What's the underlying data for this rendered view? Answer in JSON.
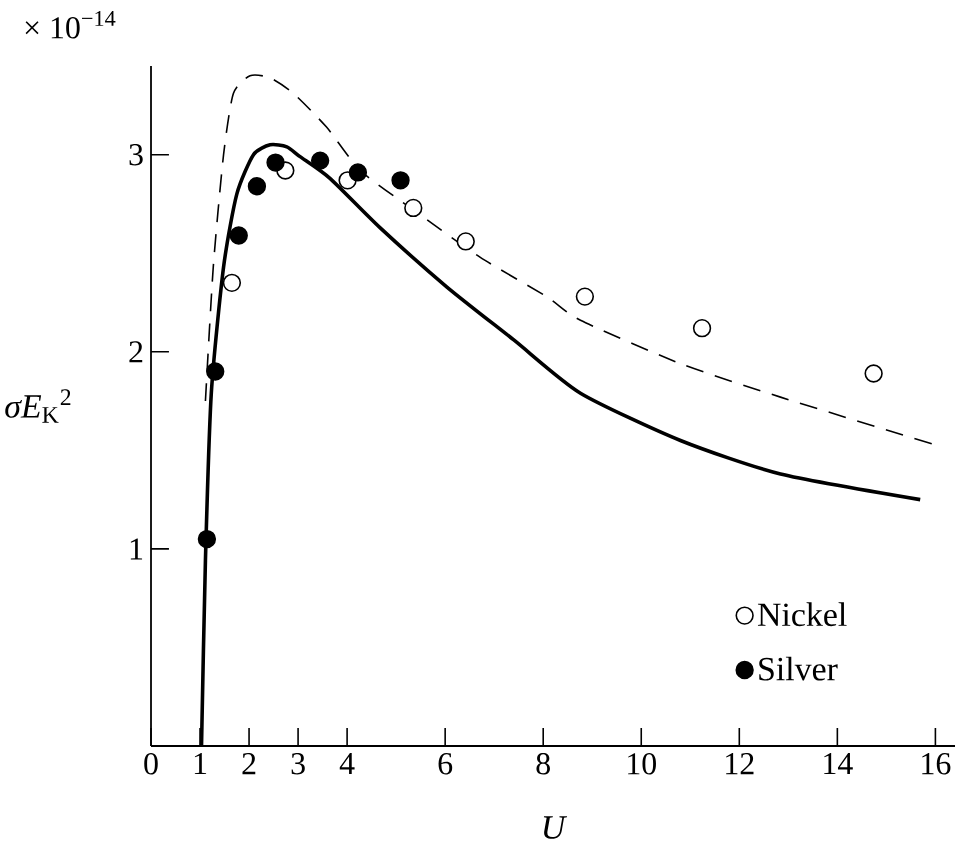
{
  "chart_data": {
    "type": "scatter",
    "xlabel": "U",
    "ylabel": "*σE*$_{K}$$^{2}$",
    "annotations": [
      "× 10$^{−14}$"
    ],
    "xlim": [
      0,
      16.4
    ],
    "ylim": [
      0,
      3.45
    ],
    "xticks": [
      0,
      1,
      2,
      3,
      4,
      6,
      8,
      10,
      12,
      14,
      16
    ],
    "yticks": [
      1,
      2,
      3
    ],
    "grid": false,
    "legend": "bottom right",
    "marker": "circle",
    "series": [
      {
        "name": "Nickel",
        "color": "#ffffff",
        "x": [
          1.65,
          2.74,
          4.01,
          5.35,
          6.42,
          8.85,
          11.24,
          14.74
        ],
        "values": [
          2.35,
          2.92,
          2.87,
          2.73,
          2.56,
          2.28,
          2.12,
          1.89
        ]
      },
      {
        "name": "Silver",
        "color": "#000000",
        "x": [
          1.14,
          1.31,
          1.79,
          2.16,
          2.54,
          3.45,
          4.22,
          5.09
        ],
        "values": [
          1.05,
          1.9,
          2.59,
          2.84,
          2.96,
          2.97,
          2.91,
          2.87
        ]
      },
      {
        "type": "line",
        "marker": "none",
        "line_style": "dashed",
        "color": "#000000",
        "x": [
          1.11,
          1.27,
          1.48,
          1.68,
          2.02,
          2.43,
          2.91,
          3.58,
          4.27,
          5.35,
          6.71,
          8.07,
          8.76,
          10.8,
          12.84,
          15.97
        ],
        "values": [
          1.75,
          2.43,
          3.0,
          3.31,
          3.4,
          3.39,
          3.31,
          3.14,
          2.92,
          2.72,
          2.48,
          2.28,
          2.16,
          1.94,
          1.77,
          1.53
        ]
      },
      {
        "type": "line",
        "marker": "none",
        "line_style": "solid",
        "color": "#000000",
        "x": [
          1.03,
          1.11,
          1.23,
          1.48,
          1.75,
          2.09,
          2.43,
          2.77,
          3.04,
          3.65,
          4.67,
          6.03,
          7.4,
          8.76,
          10.8,
          12.84,
          15.69
        ],
        "values": [
          0,
          0.94,
          1.79,
          2.43,
          2.8,
          3.0,
          3.05,
          3.04,
          2.99,
          2.88,
          2.63,
          2.33,
          2.06,
          1.79,
          1.55,
          1.38,
          1.25
        ]
      }
    ]
  }
}
